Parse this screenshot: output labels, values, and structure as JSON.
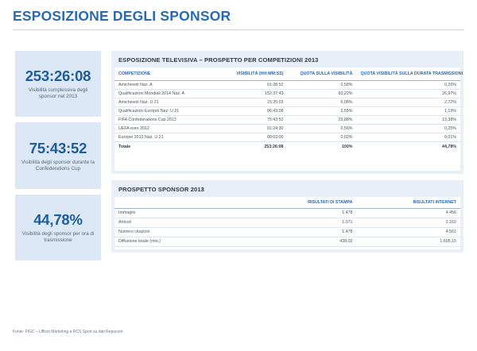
{
  "page": {
    "title": "ESPOSIZIONE DEGLI SPONSOR"
  },
  "kpis": [
    {
      "value": "253:26:08",
      "description": "Visibilità complessiva degli sponsor nel 2013"
    },
    {
      "value": "75:43:52",
      "description": "Visibilità degli sponsor durante la Confederations Cup"
    },
    {
      "value": "44,78%",
      "description": "Visibilità degli sponsor per ora di trasmissione"
    }
  ],
  "tv_table": {
    "title": "ESPOSIZIONE TELEVISIVA – PROSPETTO PER COMPETIZIONI 2013",
    "headers": [
      "COMPETIZIONE",
      "VISIBILITÀ (HH:MM:SS)",
      "QUOTA SULLA VISIBILITÀ",
      "QUOTA VISIBILITÀ SULLA DURATA TRASMISSIONI"
    ],
    "rows": [
      [
        "Amichevoli Naz. A",
        "01:28:52",
        "0,58%",
        "0,26%"
      ],
      [
        "Qualificazioni Mondiali 2014 Naz. A",
        "152:37:43",
        "60,22%",
        "26,97%"
      ],
      [
        "Amichevoli Naz. U 21",
        "15:25:03",
        "6,08%",
        "2,72%"
      ],
      [
        "Qualificazioni Europei Naz. U 21",
        "06:43:08",
        "2,65%",
        "1,19%"
      ],
      [
        "FIFA Confederations Cup 2013",
        "75:43:52",
        "29,88%",
        "13,38%"
      ],
      [
        "UEFA euro 2012",
        "01:24:30",
        "0,56%",
        "0,25%"
      ],
      [
        "Europei 2013 Naz. U 21",
        "00:03:00",
        "0,02%",
        "0,01%"
      ]
    ],
    "total": [
      "Totale",
      "253:26:08",
      "100%",
      "44,78%"
    ]
  },
  "sponsor_table": {
    "title": "PROSPETTO SPONSOR 2013",
    "headers": [
      "",
      "RISULTATI DI STAMPA",
      "RISULTATI INTERNET"
    ],
    "rows": [
      [
        "Immagini",
        "1.478",
        "4.456"
      ],
      [
        "Articoli",
        "1.071",
        "2.310"
      ],
      [
        "Numero citazioni",
        "1.478",
        "4.561"
      ],
      [
        "Diffusione totale (mio.)",
        "438,02",
        "1.605,15"
      ]
    ]
  },
  "footer": {
    "source": "Fonte: FIGC – Ufficio Marketing e RCS Sport su dati Repucom"
  }
}
